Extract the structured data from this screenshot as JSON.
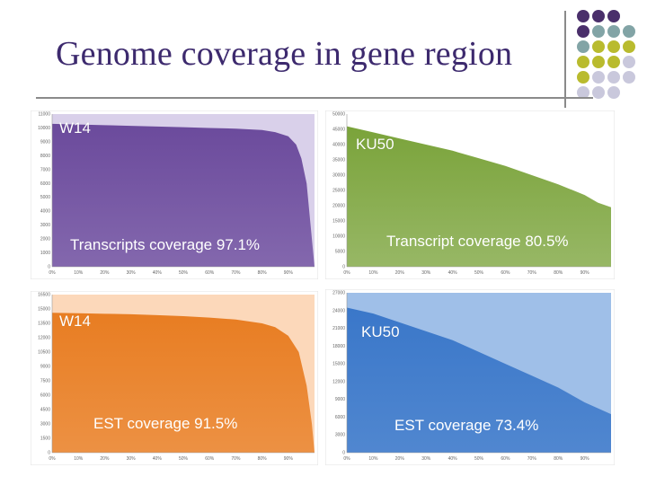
{
  "slide": {
    "title": "Genome coverage in gene region"
  },
  "decoration": {
    "dot_colors": {
      "purple": "#4a2f6b",
      "teal": "#82a4a6",
      "olive": "#b9bb2e",
      "lavender": "#c9c8dc"
    }
  },
  "chart_data": [
    {
      "type": "area",
      "panel_label": "W14",
      "coverage_label": "Transcripts  coverage  97.1%",
      "color": "#6b4a9c",
      "bg_color": "#d9d0ea",
      "yticks": [
        "0",
        "1000",
        "2000",
        "3000",
        "4000",
        "5000",
        "6000",
        "7000",
        "8000",
        "9000",
        "10000",
        "11000"
      ],
      "xticks": [
        "0%",
        "10%",
        "20%",
        "30%",
        "40%",
        "50%",
        "60%",
        "70%",
        "80%",
        "90%"
      ],
      "x": [
        0,
        0.1,
        0.2,
        0.3,
        0.4,
        0.5,
        0.6,
        0.7,
        0.8,
        0.85,
        0.9,
        0.93,
        0.95,
        0.97,
        0.985,
        1.0
      ],
      "y": [
        10300,
        10250,
        10200,
        10150,
        10100,
        10050,
        10000,
        9950,
        9850,
        9700,
        9400,
        8800,
        7800,
        6000,
        3000,
        0
      ],
      "ylim": [
        0,
        11000
      ]
    },
    {
      "type": "area",
      "panel_label": "KU50",
      "coverage_label": "Transcript coverage 80.5%",
      "color": "#7aa33a",
      "bg_color": "#ffffff",
      "yticks": [
        "0",
        "5000",
        "10000",
        "15000",
        "20000",
        "25000",
        "30000",
        "35000",
        "40000",
        "45000",
        "50000"
      ],
      "xticks": [
        "0%",
        "10%",
        "20%",
        "30%",
        "40%",
        "50%",
        "60%",
        "70%",
        "80%",
        "90%"
      ],
      "x": [
        0,
        0.1,
        0.2,
        0.3,
        0.4,
        0.5,
        0.6,
        0.7,
        0.8,
        0.9,
        0.95,
        1.0
      ],
      "y": [
        46000,
        44000,
        42000,
        40000,
        38000,
        35500,
        33000,
        30000,
        27000,
        23500,
        21000,
        19500
      ],
      "ylim": [
        0,
        50000
      ]
    },
    {
      "type": "area",
      "panel_label": "W14",
      "coverage_label": "EST coverage 91.5%",
      "color": "#e87d22",
      "bg_color": "#fcd8ba",
      "yticks": [
        "0",
        "1500",
        "3000",
        "4500",
        "6000",
        "7500",
        "9000",
        "10500",
        "12000",
        "13500",
        "15000",
        "16500"
      ],
      "xticks": [
        "0%",
        "10%",
        "20%",
        "30%",
        "40%",
        "50%",
        "60%",
        "70%",
        "80%",
        "90%"
      ],
      "x": [
        0,
        0.1,
        0.2,
        0.3,
        0.4,
        0.5,
        0.6,
        0.7,
        0.8,
        0.85,
        0.9,
        0.94,
        0.97,
        0.99,
        1.0
      ],
      "y": [
        14600,
        14550,
        14500,
        14450,
        14350,
        14250,
        14100,
        13900,
        13500,
        13100,
        12200,
        10500,
        7000,
        3000,
        0
      ],
      "ylim": [
        0,
        16500
      ]
    },
    {
      "type": "area",
      "panel_label": "KU50",
      "coverage_label": "EST  coverage 73.4%",
      "color": "#3a77c9",
      "bg_color": "#9fbfe8",
      "yticks": [
        "0",
        "3000",
        "6000",
        "9000",
        "12000",
        "15000",
        "18000",
        "21000",
        "24000",
        "27000"
      ],
      "xticks": [
        "0%",
        "10%",
        "20%",
        "30%",
        "40%",
        "50%",
        "60%",
        "70%",
        "80%",
        "90%"
      ],
      "x": [
        0,
        0.1,
        0.2,
        0.3,
        0.4,
        0.5,
        0.6,
        0.7,
        0.8,
        0.9,
        1.0
      ],
      "y": [
        24500,
        23500,
        22000,
        20500,
        19000,
        17000,
        15000,
        13000,
        11000,
        8500,
        6500
      ],
      "ylim": [
        0,
        27000
      ]
    }
  ]
}
